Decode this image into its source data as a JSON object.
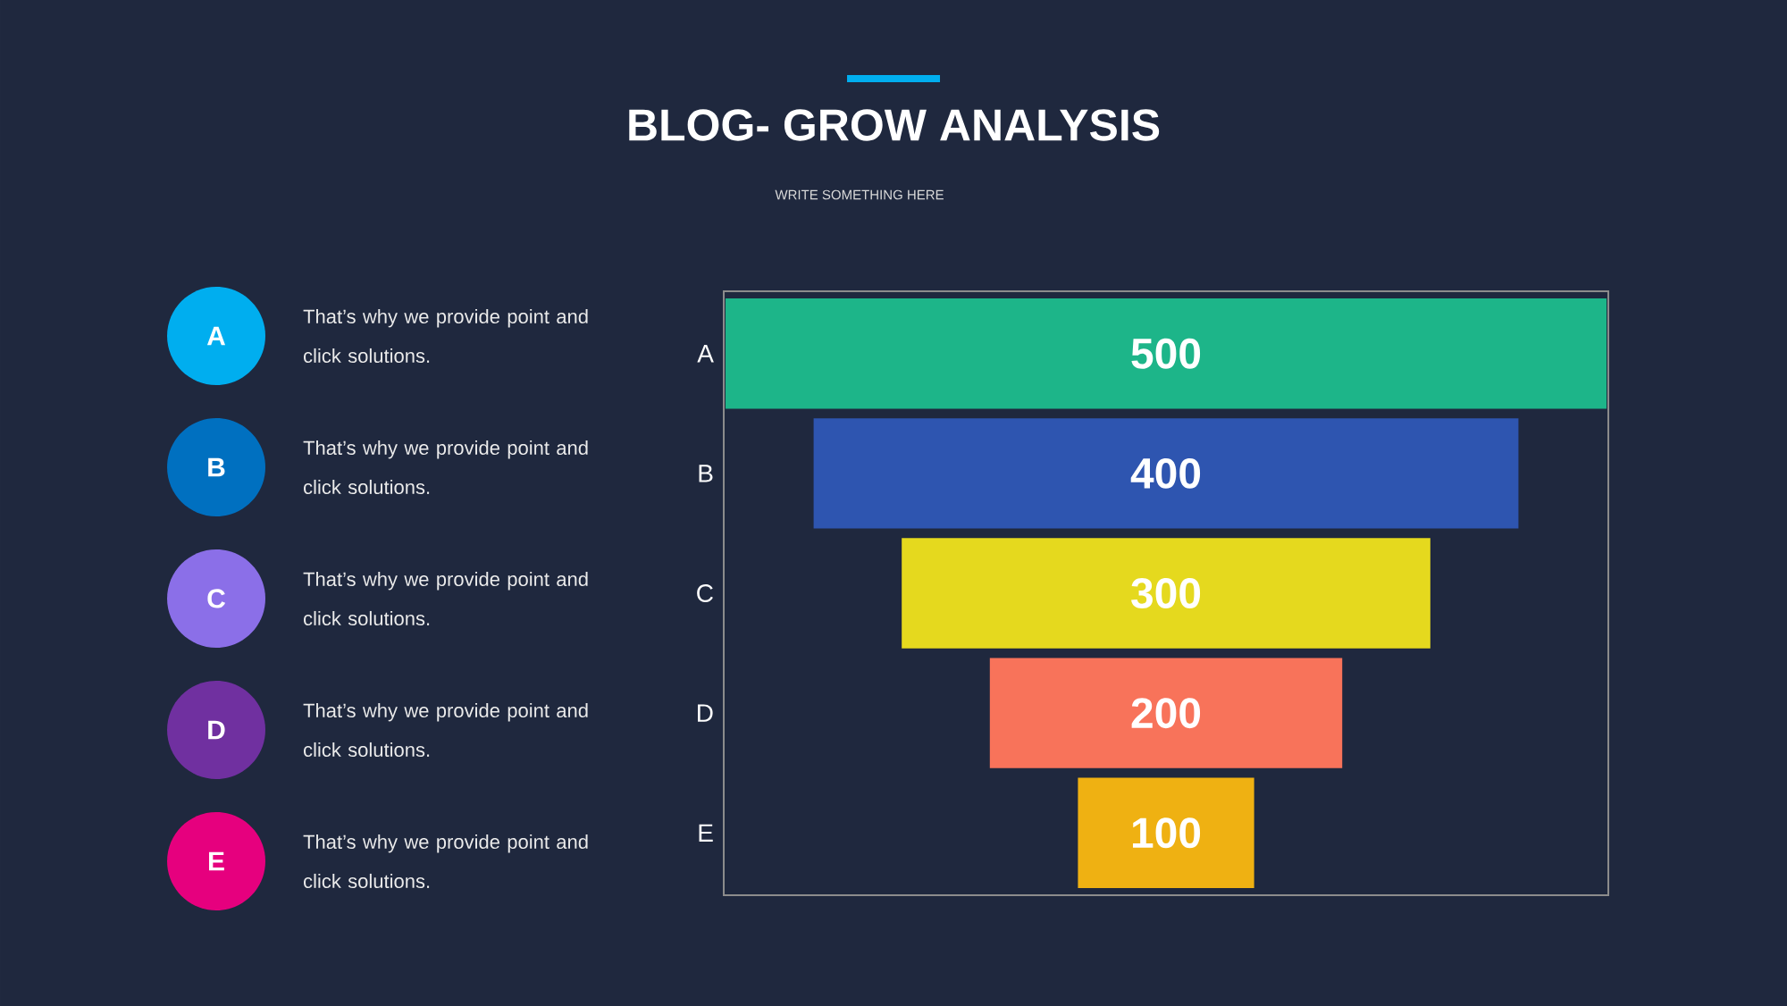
{
  "chart_data": [
    {
      "type": "other",
      "categories": [
        "A",
        "B",
        "C",
        "D",
        "E"
      ],
      "colors": [
        "#00aeef",
        "#0070c0",
        "#8b6fe8",
        "#7030a0",
        "#e6007e"
      ],
      "annotations": [
        "That’s why we provide point and click solutions.",
        "That’s why we provide point and click solutions.",
        "That’s why we provide point and click solutions.",
        "That’s why we provide point and click solutions.",
        "That’s why we provide point and click solutions."
      ]
    },
    {
      "type": "other",
      "title": "BLOG-  GROW ANALYSIS",
      "subtitle": "WRITE SOMETHING HERE",
      "categories": [
        "A",
        "B",
        "C",
        "D",
        "E"
      ],
      "values": [
        500,
        400,
        300,
        200,
        100
      ],
      "colors": [
        "#1db589",
        "#2e55b0",
        "#e5d91e",
        "#f8735a",
        "#efb112"
      ],
      "data_labels": true
    }
  ]
}
